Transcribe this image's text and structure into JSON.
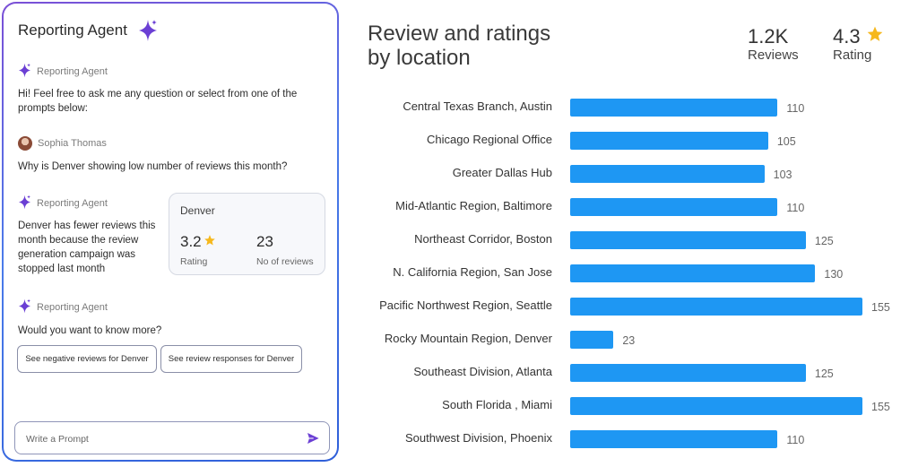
{
  "agent_panel": {
    "title": "Reporting Agent",
    "messages": [
      {
        "sender": "Reporting Agent",
        "text": "Hi! Feel free to ask me any question or select from one of the prompts below:"
      },
      {
        "sender": "Sophia Thomas",
        "text": "Why is Denver showing low number of reviews this month?"
      },
      {
        "sender": "Reporting Agent",
        "text": "Denver has fewer reviews this month because the review generation campaign was stopped last month"
      },
      {
        "sender": "Reporting Agent",
        "text": "Would you want to know more?"
      }
    ],
    "denver_card": {
      "title": "Denver",
      "rating_value": "3.2",
      "rating_label": "Rating",
      "reviews_value": "23",
      "reviews_label": "No of reviews"
    },
    "suggestions": [
      "See negative reviews for Denver",
      "See review responses for Denver"
    ],
    "prompt": {
      "placeholder": "Write a Prompt",
      "value": ""
    }
  },
  "section": {
    "title": "Review and ratings by location",
    "stats": [
      {
        "value": "1.2K",
        "label": "Reviews"
      },
      {
        "value": "4.3",
        "label": "Rating"
      }
    ]
  },
  "colors": {
    "bar": "#1e97f3",
    "star": "#f6b81c",
    "accent": "#6b3fd4"
  },
  "chart_data": {
    "type": "bar",
    "orientation": "horizontal",
    "categories": [
      "Central Texas Branch, Austin",
      "Chicago Regional Office",
      "Greater Dallas Hub",
      "Mid-Atlantic Region, Baltimore",
      "Northeast Corridor, Boston",
      "N. California Region, San Jose",
      "Pacific Northwest Region, Seattle",
      "Rocky Mountain Region, Denver",
      "Southeast Division, Atlanta",
      "South Florida , Miami",
      "Southwest Division, Phoenix"
    ],
    "values": [
      110,
      105,
      103,
      110,
      125,
      130,
      155,
      23,
      125,
      155,
      110
    ],
    "grid": false
  }
}
